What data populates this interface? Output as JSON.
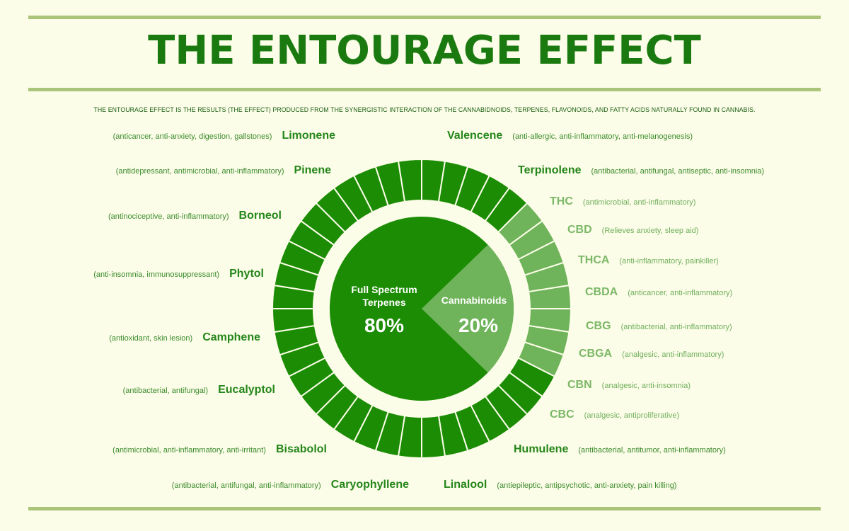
{
  "title": "THE ENTOURAGE EFFECT",
  "subtitle": "THE ENTOURAGE EFFECT IS THE RESULTS (THE EFFECT) PRODUCED FROM THE SYNERGISTIC INTERACTION OF THE CANNABIDNOIDS, TERPENES, FLAVONOIDS, AND FATTY ACIDS NATURALLY FOUND IN CANNABIS.",
  "colors": {
    "dark_green": "#1b8c04",
    "light_green": "#6fb35a",
    "background": "#fcfde8",
    "rule": "#aac47a"
  },
  "center": {
    "terpenes_label_1": "Full Spectrum",
    "terpenes_label_2": "Terpenes",
    "terpenes_value": "80%",
    "cannabinoids_label": "Cannabinoids",
    "cannabinoids_value": "20%"
  },
  "chart_data": {
    "type": "pie",
    "categories": [
      "Full Spectrum Terpenes",
      "Cannabinoids"
    ],
    "values": [
      80,
      20
    ],
    "ring_segments": {
      "total": 40,
      "light": 8
    }
  },
  "left_items": [
    {
      "name": "Limonene",
      "desc": "(anticancer, anti-anxiety, digestion, gallstones)"
    },
    {
      "name": "Pinene",
      "desc": "(antidepressant, antimicrobial, anti-inflammatory)"
    },
    {
      "name": "Borneol",
      "desc": "(antinociceptive, anti-inflammatory)"
    },
    {
      "name": "Phytol",
      "desc": "(anti-insomnia, immunosuppressant)"
    },
    {
      "name": "Camphene",
      "desc": "(antioxidant, skin lesion)"
    },
    {
      "name": "Eucalyptol",
      "desc": "(antibacterial, antifungal)"
    },
    {
      "name": "Bisabolol",
      "desc": "(antimicrobial, anti-inflammatory, anti-irritant)"
    },
    {
      "name": "Caryophyllene",
      "desc": "(antibacterial, antifungal, anti-inflammatory)"
    }
  ],
  "right_items": [
    {
      "name": "Valencene",
      "desc": "(anti-allergic, anti-inflammatory, anti-melanogenesis)"
    },
    {
      "name": "Terpinolene",
      "desc": "(antibacterial, antifungal, antiseptic, anti-insomnia)"
    },
    {
      "name": "THC",
      "desc": "(antimicrobial, anti-inflammatory)"
    },
    {
      "name": "CBD",
      "desc": "(Relieves anxiety, sleep aid)"
    },
    {
      "name": "THCA",
      "desc": "(anti-inflammatory, painkiller)"
    },
    {
      "name": "CBDA",
      "desc": "(anticancer, anti-inflammatory)"
    },
    {
      "name": "CBG",
      "desc": "(antibacterial, anti-inflammatory)"
    },
    {
      "name": "CBGA",
      "desc": "(analgesic, anti-inflammatory)"
    },
    {
      "name": "CBN",
      "desc": "(analgesic, anti-insomnia)"
    },
    {
      "name": "CBC",
      "desc": "(analgesic, antiproliferative)"
    },
    {
      "name": "Humulene",
      "desc": "(antibacterial, antitumor, anti-inflammatory)"
    },
    {
      "name": "Linalool",
      "desc": "(antiepileptic, antipsychotic, anti-anxiety, pain killing)"
    }
  ]
}
